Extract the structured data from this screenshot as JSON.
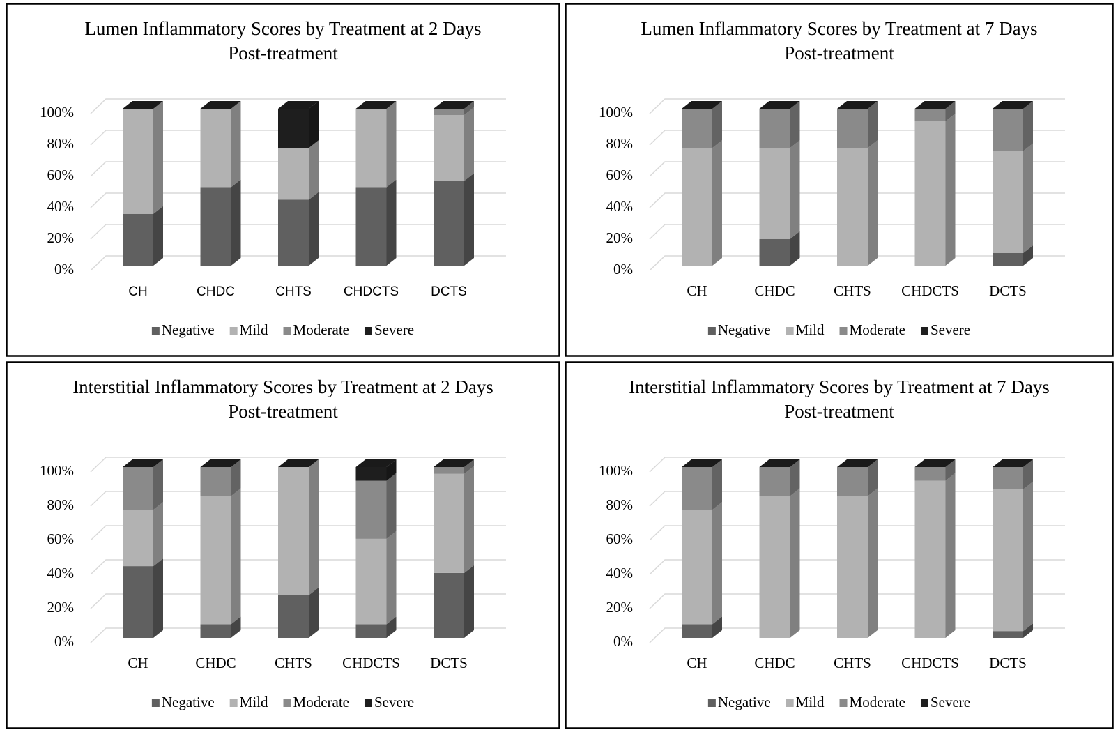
{
  "chart_data": [
    {
      "type": "bar",
      "title": "Lumen Inflammatory Scores by Treatment at 2 Days Post-treatment",
      "categories": [
        "CH",
        "CHDC",
        "CHTS",
        "CHDCTS",
        "DCTS"
      ],
      "series": [
        {
          "name": "Negative",
          "color": "#606060",
          "values": [
            33,
            50,
            42,
            50,
            54
          ]
        },
        {
          "name": "Mild",
          "color": "#b2b2b2",
          "values": [
            67,
            50,
            33,
            50,
            42
          ]
        },
        {
          "name": "Moderate",
          "color": "#8a8a8a",
          "values": [
            0,
            0,
            0,
            0,
            4
          ]
        },
        {
          "name": "Severe",
          "color": "#1e1e1e",
          "values": [
            0,
            0,
            25,
            0,
            0
          ]
        }
      ],
      "ylim": [
        0,
        100
      ],
      "yticks": [
        {
          "value": 0,
          "label": "0%"
        },
        {
          "value": 20,
          "label": "20%"
        },
        {
          "value": 40,
          "label": "40%"
        },
        {
          "value": 60,
          "label": "60%"
        },
        {
          "value": 80,
          "label": "80%"
        },
        {
          "value": 100,
          "label": "100%"
        }
      ],
      "stacked": true,
      "grid": true,
      "legend": "bottom"
    },
    {
      "type": "bar",
      "title": "Lumen Inflammatory Scores by Treatment at 7 Days Post-treatment",
      "categories": [
        "CH",
        "CHDC",
        "CHTS",
        "CHDCTS",
        "DCTS"
      ],
      "series": [
        {
          "name": "Negative",
          "color": "#606060",
          "values": [
            0,
            17,
            0,
            0,
            8
          ]
        },
        {
          "name": "Mild",
          "color": "#b2b2b2",
          "values": [
            75,
            58,
            75,
            92,
            65
          ]
        },
        {
          "name": "Moderate",
          "color": "#8a8a8a",
          "values": [
            25,
            25,
            25,
            8,
            27
          ]
        },
        {
          "name": "Severe",
          "color": "#1e1e1e",
          "values": [
            0,
            0,
            0,
            0,
            0
          ]
        }
      ],
      "ylim": [
        0,
        100
      ],
      "yticks": [
        {
          "value": 0,
          "label": "0%"
        },
        {
          "value": 20,
          "label": "20%"
        },
        {
          "value": 40,
          "label": "40%"
        },
        {
          "value": 60,
          "label": "60%"
        },
        {
          "value": 80,
          "label": "80%"
        },
        {
          "value": 100,
          "label": "100%"
        }
      ],
      "stacked": true,
      "grid": true,
      "legend": "bottom"
    },
    {
      "type": "bar",
      "title": "Interstitial Inflammatory Scores by Treatment at 2 Days Post-treatment",
      "categories": [
        "CH",
        "CHDC",
        "CHTS",
        "CHDCTS",
        "DCTS"
      ],
      "series": [
        {
          "name": "Negative",
          "color": "#606060",
          "values": [
            42,
            8,
            25,
            8,
            38
          ]
        },
        {
          "name": "Mild",
          "color": "#b2b2b2",
          "values": [
            33,
            75,
            75,
            50,
            58
          ]
        },
        {
          "name": "Moderate",
          "color": "#8a8a8a",
          "values": [
            25,
            17,
            0,
            34,
            4
          ]
        },
        {
          "name": "Severe",
          "color": "#1e1e1e",
          "values": [
            0,
            0,
            0,
            8,
            0
          ]
        }
      ],
      "ylim": [
        0,
        100
      ],
      "yticks": [
        {
          "value": 0,
          "label": "0%"
        },
        {
          "value": 20,
          "label": "20%"
        },
        {
          "value": 40,
          "label": "40%"
        },
        {
          "value": 60,
          "label": "60%"
        },
        {
          "value": 80,
          "label": "80%"
        },
        {
          "value": 100,
          "label": "100%"
        }
      ],
      "stacked": true,
      "grid": true,
      "legend": "bottom"
    },
    {
      "type": "bar",
      "title": "Interstitial Inflammatory Scores by Treatment at 7 Days Post-treatment",
      "categories": [
        "CH",
        "CHDC",
        "CHTS",
        "CHDCTS",
        "DCTS"
      ],
      "series": [
        {
          "name": "Negative",
          "color": "#606060",
          "values": [
            8,
            0,
            0,
            0,
            4
          ]
        },
        {
          "name": "Mild",
          "color": "#b2b2b2",
          "values": [
            67,
            83,
            83,
            92,
            83
          ]
        },
        {
          "name": "Moderate",
          "color": "#8a8a8a",
          "values": [
            25,
            17,
            17,
            8,
            13
          ]
        },
        {
          "name": "Severe",
          "color": "#1e1e1e",
          "values": [
            0,
            0,
            0,
            0,
            0
          ]
        }
      ],
      "ylim": [
        0,
        100
      ],
      "yticks": [
        {
          "value": 0,
          "label": "0%"
        },
        {
          "value": 20,
          "label": "20%"
        },
        {
          "value": 40,
          "label": "40%"
        },
        {
          "value": 60,
          "label": "60%"
        },
        {
          "value": 80,
          "label": "80%"
        },
        {
          "value": 100,
          "label": "100%"
        }
      ],
      "stacked": true,
      "grid": true,
      "legend": "bottom"
    }
  ]
}
